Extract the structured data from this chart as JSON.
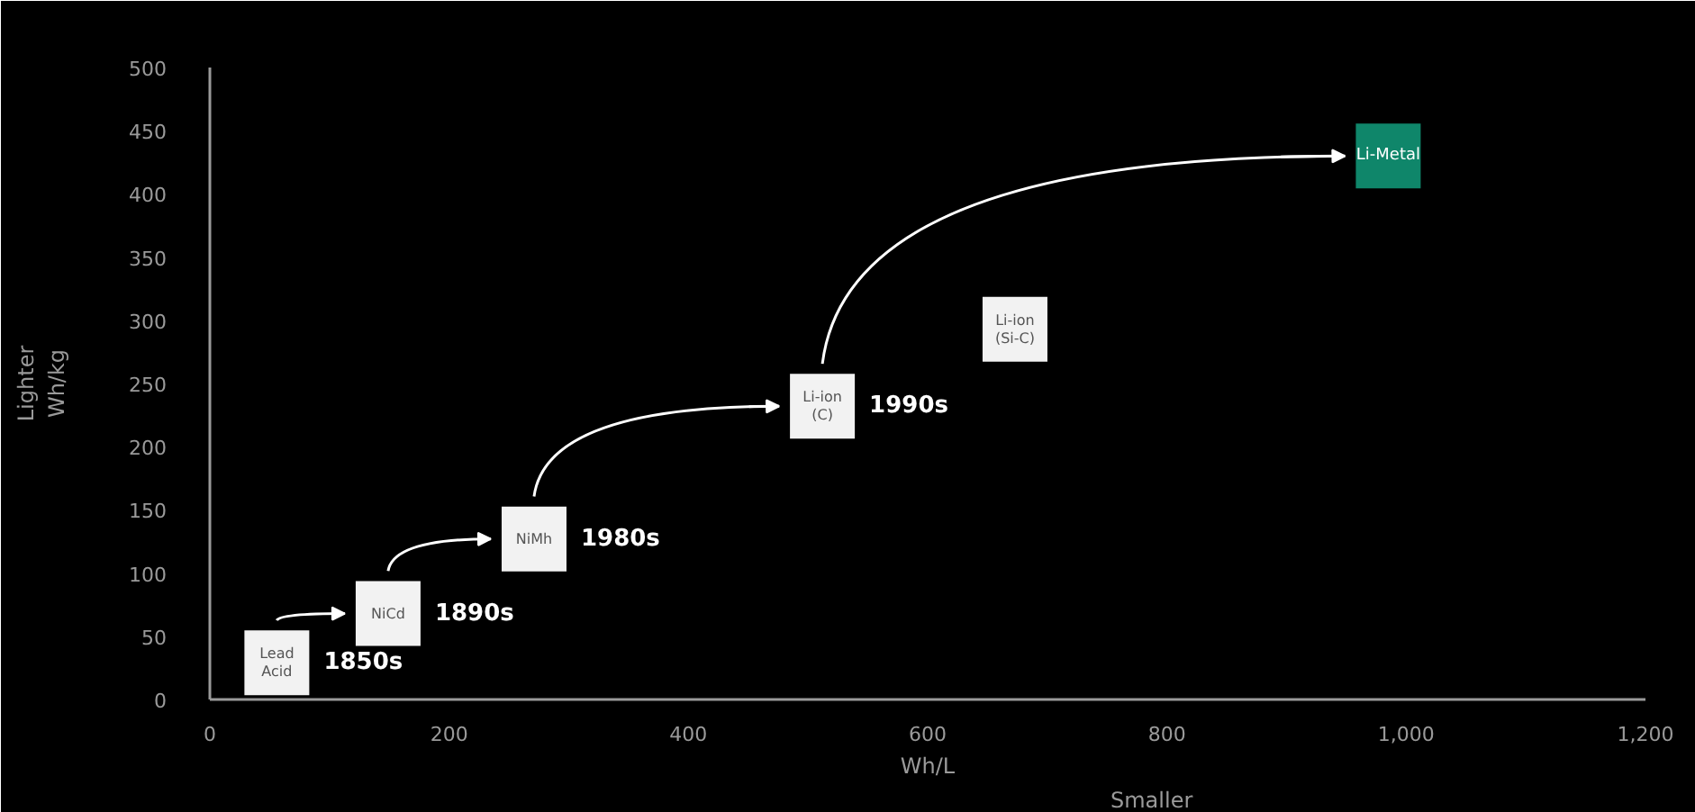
{
  "chart_data": {
    "type": "scatter",
    "xlabel": "Wh/L",
    "ylabel": "Wh/kg",
    "xlim": [
      0,
      1200
    ],
    "ylim": [
      0,
      500
    ],
    "xticks": [
      0,
      200,
      400,
      600,
      800,
      {
        "value": 1000,
        "label": "1,000"
      },
      {
        "value": 1200,
        "label": "1,200"
      }
    ],
    "yticks": [
      0,
      50,
      100,
      150,
      200,
      250,
      300,
      350,
      400,
      450,
      500
    ],
    "grid": false,
    "marker": "square",
    "series": [
      {
        "x": [
          56,
          149,
          271,
          512,
          985
        ],
        "values": [
          29,
          68,
          127,
          232,
          430
        ],
        "colors": [
          "#f2f2f2",
          "#f2f2f2",
          "#f2f2f2",
          "#f2f2f2",
          "#0f866a"
        ]
      },
      {
        "x": [
          673
        ],
        "values": [
          293
        ],
        "colors": [
          "#f2f2f2"
        ]
      }
    ],
    "annotations": [
      {
        "text": "Lead\nAcid",
        "x": 56,
        "y": 29
      },
      {
        "text": "NiCd",
        "x": 149,
        "y": 68
      },
      {
        "text": "NiMh",
        "x": 271,
        "y": 127
      },
      {
        "text": "Li-ion\n(C)",
        "x": 512,
        "y": 232
      },
      {
        "text": "Li-Metal",
        "x": 985,
        "y": 430
      },
      {
        "text": "Li-ion\n(Si-C)",
        "x": 673,
        "y": 293
      },
      "1850s",
      "1890s",
      "1980s",
      "1990s",
      "Lighter",
      "Smaller"
    ]
  }
}
